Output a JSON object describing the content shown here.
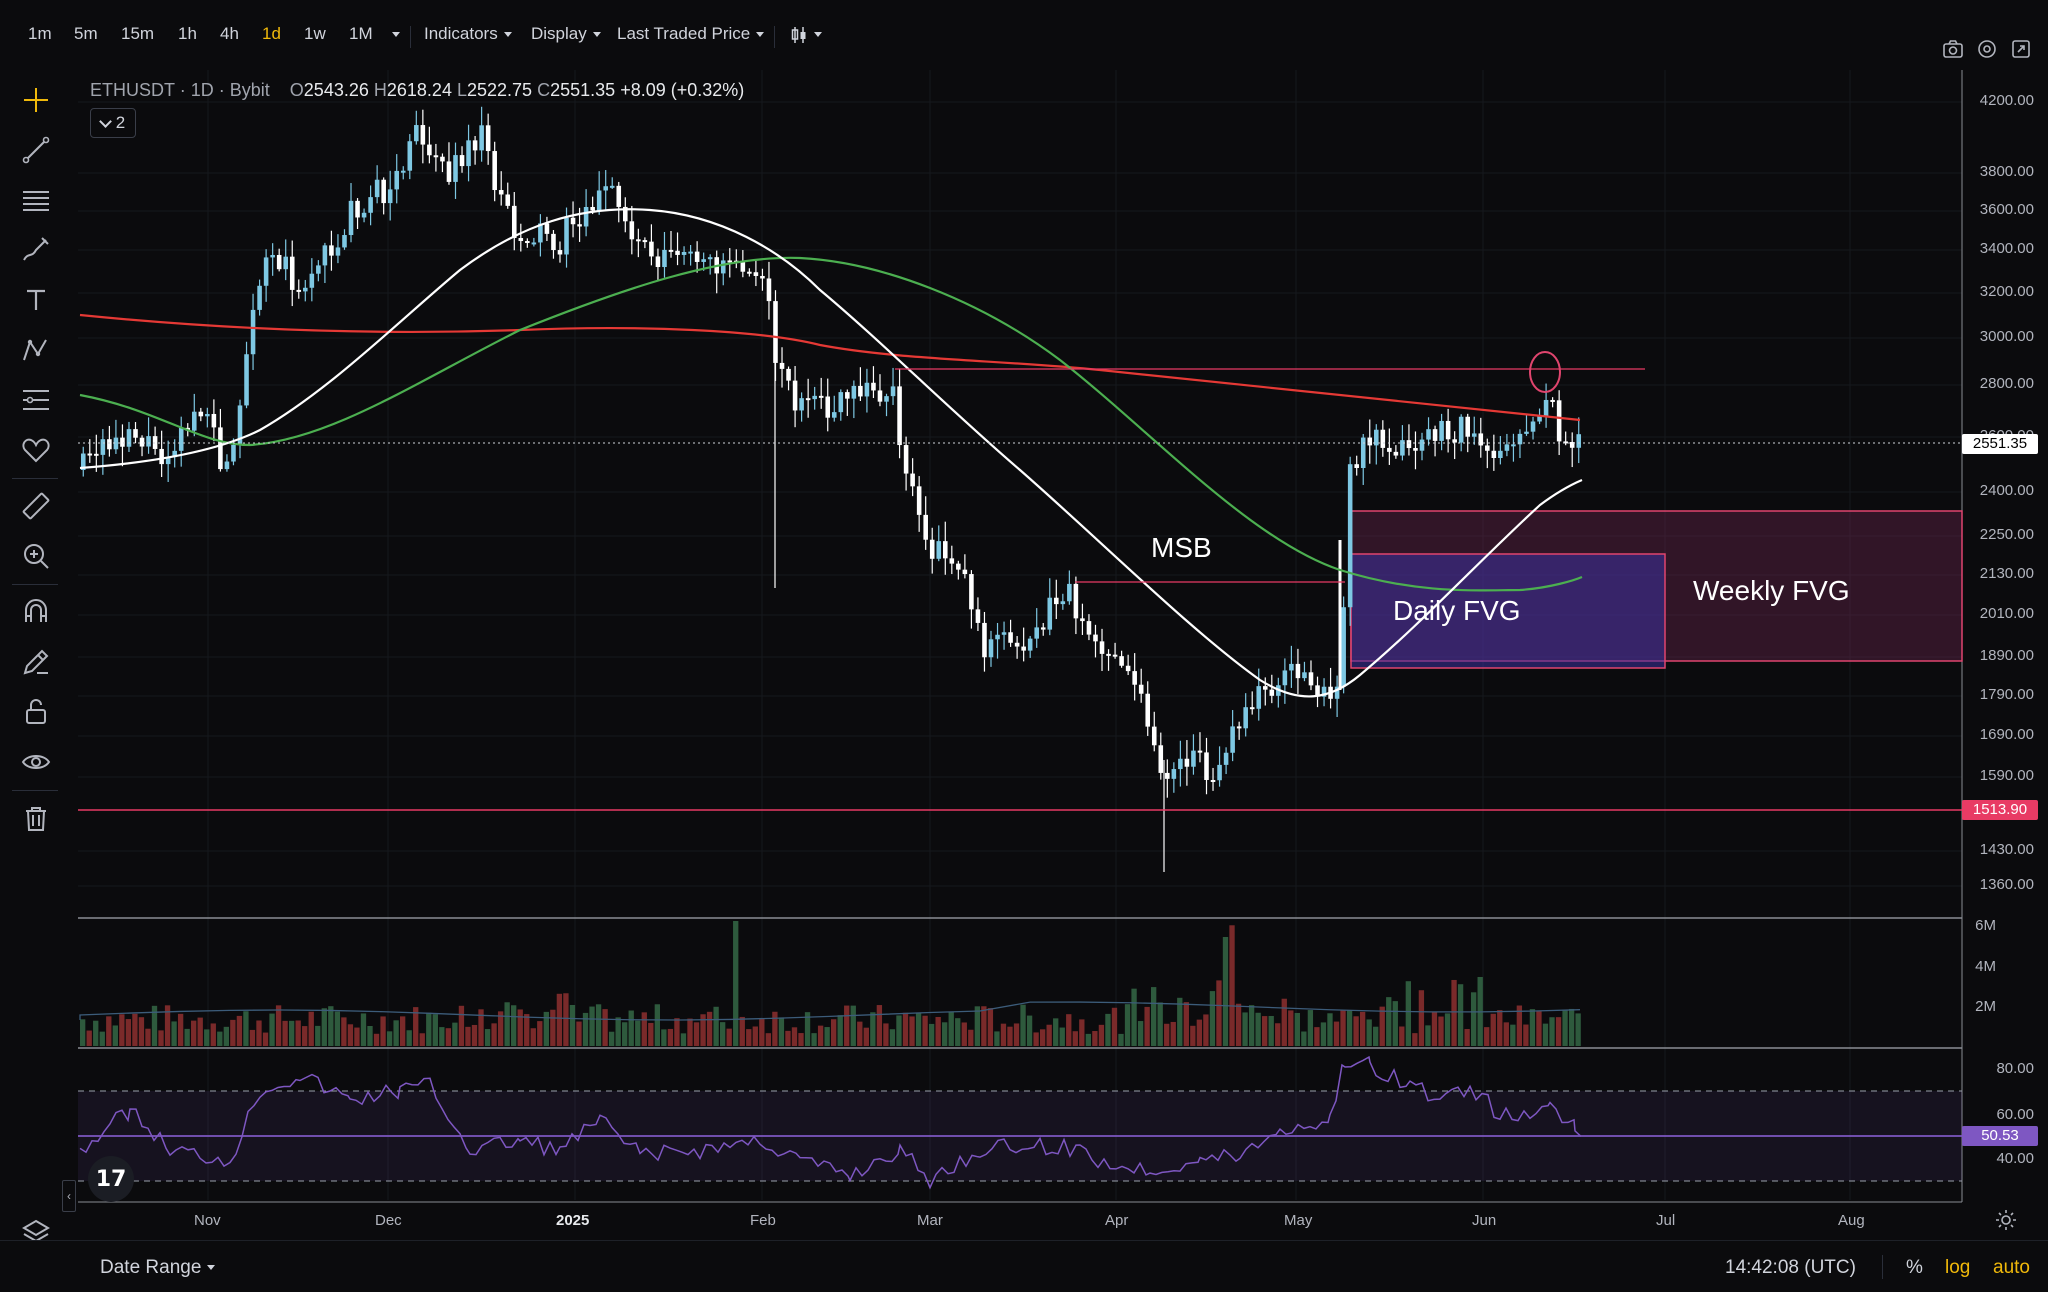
{
  "toolbar": {
    "intervals": [
      {
        "label": "1m",
        "active": false
      },
      {
        "label": "5m",
        "active": false
      },
      {
        "label": "15m",
        "active": false
      },
      {
        "label": "1h",
        "active": false
      },
      {
        "label": "4h",
        "active": false
      },
      {
        "label": "1d",
        "active": true
      },
      {
        "label": "1w",
        "active": false
      },
      {
        "label": "1M",
        "active": false
      }
    ],
    "indicators_label": "Indicators",
    "display_label": "Display",
    "price_type_label": "Last Traded Price",
    "right_icons": [
      "camera-icon",
      "settings-icon",
      "fullscreen-icon"
    ]
  },
  "legend": {
    "symbol": "ETHUSDT",
    "interval": "1D",
    "exchange": "Bybit",
    "open_key": "O",
    "open": "2543.26",
    "high_key": "H",
    "high": "2618.24",
    "low_key": "L",
    "low": "2522.75",
    "close_key": "C",
    "close": "2551.35",
    "change": "+8.09 (+0.32%)",
    "indicator_count": "2"
  },
  "price_axis": {
    "labels": [
      "4200.00",
      "3800.00",
      "3600.00",
      "3400.00",
      "3200.00",
      "3000.00",
      "2800.00",
      "2600.00",
      "2400.00",
      "2250.00",
      "2130.00",
      "2010.00",
      "1890.00",
      "1790.00",
      "1690.00",
      "1590.00",
      "1430.00",
      "1360.00"
    ],
    "current_price": "2551.35",
    "level_price": "1513.90",
    "current_color": "#ffffff",
    "level_color": "#e83b64"
  },
  "volume_axis": {
    "labels": [
      "6M",
      "4M",
      "2M"
    ]
  },
  "rsi_axis": {
    "labels": [
      "80.00",
      "60.00",
      "40.00"
    ],
    "current": "50.53"
  },
  "time_axis": {
    "labels": [
      {
        "text": "Nov",
        "bold": false
      },
      {
        "text": "Dec",
        "bold": false
      },
      {
        "text": "2025",
        "bold": true
      },
      {
        "text": "Feb",
        "bold": false
      },
      {
        "text": "Mar",
        "bold": false
      },
      {
        "text": "Apr",
        "bold": false
      },
      {
        "text": "May",
        "bold": false
      },
      {
        "text": "Jun",
        "bold": false
      },
      {
        "text": "Jul",
        "bold": false
      },
      {
        "text": "Aug",
        "bold": false
      }
    ]
  },
  "annotations": {
    "msb": "MSB",
    "daily_fvg": "Daily FVG",
    "weekly_fvg": "Weekly FVG"
  },
  "bottom_bar": {
    "date_range_label": "Date Range",
    "clock": "14:42:08 (UTC)",
    "percent_label": "%",
    "log_label": "log",
    "auto_label": "auto"
  },
  "left_tools": [
    "crosshair-icon",
    "trend-line-icon",
    "horizontal-lines-icon",
    "brush-icon",
    "text-icon",
    "pattern-icon",
    "fib-icon",
    "heart-icon",
    "ruler-icon",
    "zoom-in-icon",
    "magnet-icon",
    "lock-edit-icon",
    "lock-icon",
    "eye-icon",
    "trash-icon",
    "layers-icon"
  ],
  "colors": {
    "up_candle": "#7ec8e3",
    "down_candle": "#ffffff",
    "ma_white": "#ffffff",
    "ma_green": "#4caf50",
    "ma_red": "#e53935",
    "fvg_border": "#e0456e",
    "rsi_line": "#7e57c2"
  }
}
